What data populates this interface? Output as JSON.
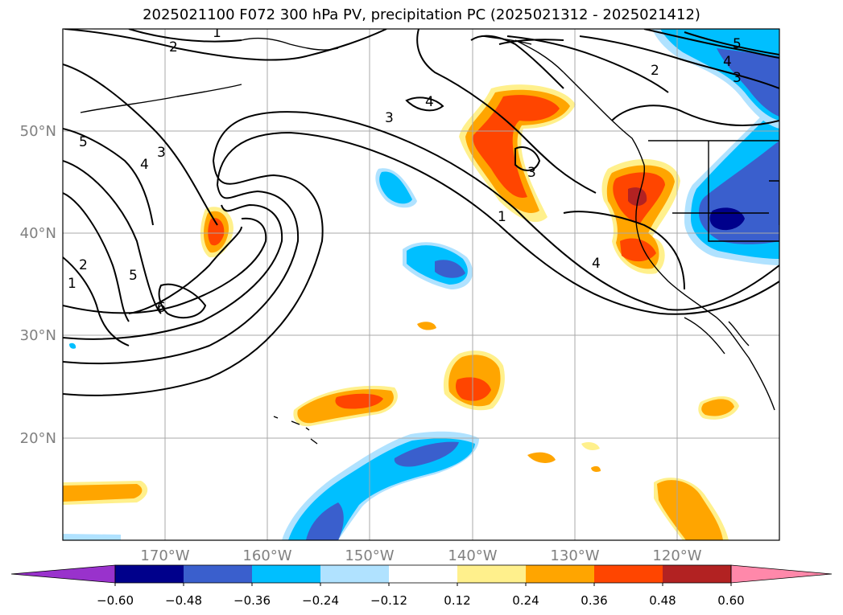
{
  "title": "2025021100 F072 300 hPa PV, precipitation PC (2025021312 - 2025021412)",
  "map": {
    "lat_labels": [
      "50°N",
      "40°N",
      "30°N",
      "20°N"
    ],
    "lon_labels": [
      "170°W",
      "160°W",
      "150°W",
      "140°W",
      "130°W",
      "120°W"
    ]
  },
  "pv_contour_labels": [
    "1",
    "2",
    "3",
    "4",
    "5",
    "6"
  ],
  "colorbar": {
    "ticks": [
      "−0.60",
      "−0.48",
      "−0.36",
      "−0.24",
      "−0.12",
      "0.12",
      "0.24",
      "0.36",
      "0.48",
      "0.60"
    ],
    "colors": [
      "#9932cc",
      "#00008b",
      "#3a5fcd",
      "#00bfff",
      "#b0e2ff",
      "#ffffff",
      "#fff08c",
      "#ffa500",
      "#ff4500",
      "#b22222",
      "#ff88aa"
    ]
  }
}
